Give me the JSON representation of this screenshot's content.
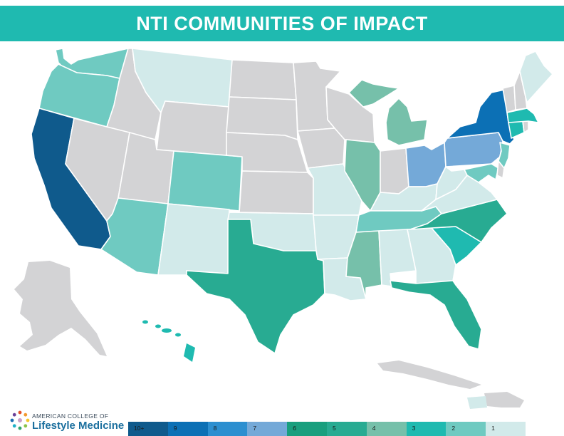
{
  "title": "NTI COMMUNITIES OF IMPACT",
  "colors": {
    "title_bar": "#1fbab0",
    "no_data": "#d3d3d5",
    "c10": "#0f5a8c",
    "c9": "#0c70b5",
    "c8": "#2c8fd0",
    "c7": "#74a9d8",
    "c6": "#199f7e",
    "c5": "#28ab92",
    "c4": "#76c0aa",
    "c3": "#1fbab0",
    "c2": "#6fcac1",
    "c1": "#d2eaea"
  },
  "legend": [
    {
      "label": "10+",
      "color": "#0f5a8c"
    },
    {
      "label": "9",
      "color": "#0c70b5"
    },
    {
      "label": "8",
      "color": "#2c8fd0"
    },
    {
      "label": "7",
      "color": "#74a9d8"
    },
    {
      "label": "6",
      "color": "#199f7e"
    },
    {
      "label": "5",
      "color": "#28ab92"
    },
    {
      "label": "4",
      "color": "#76c0aa"
    },
    {
      "label": "3",
      "color": "#1fbab0"
    },
    {
      "label": "2",
      "color": "#6fcac1"
    },
    {
      "label": "1",
      "color": "#d2eaea"
    }
  ],
  "states": {
    "CA": 10,
    "NY": 9,
    "OH": 7,
    "PA": 7,
    "TX": 5,
    "FL": 5,
    "NC": 5,
    "IL": 4,
    "MI": 4,
    "MS": 4,
    "SC": 3,
    "CT": 3,
    "MA": 3,
    "HI": 3,
    "WA": 2,
    "OR": 2,
    "CO": 2,
    "AZ": 2,
    "TN": 2,
    "NJ": 2,
    "MD": 2,
    "MT": 1,
    "NM": 1,
    "OK": 1,
    "AR": 1,
    "LA": 1,
    "AL": 1,
    "GA": 1,
    "VA": 1,
    "WV": 1,
    "ME": 1,
    "MO": 1,
    "PR": 1,
    "KY": 1
  },
  "logo": {
    "line1": "AMERICAN COLLEGE OF",
    "line2": "Lifestyle Medicine"
  }
}
